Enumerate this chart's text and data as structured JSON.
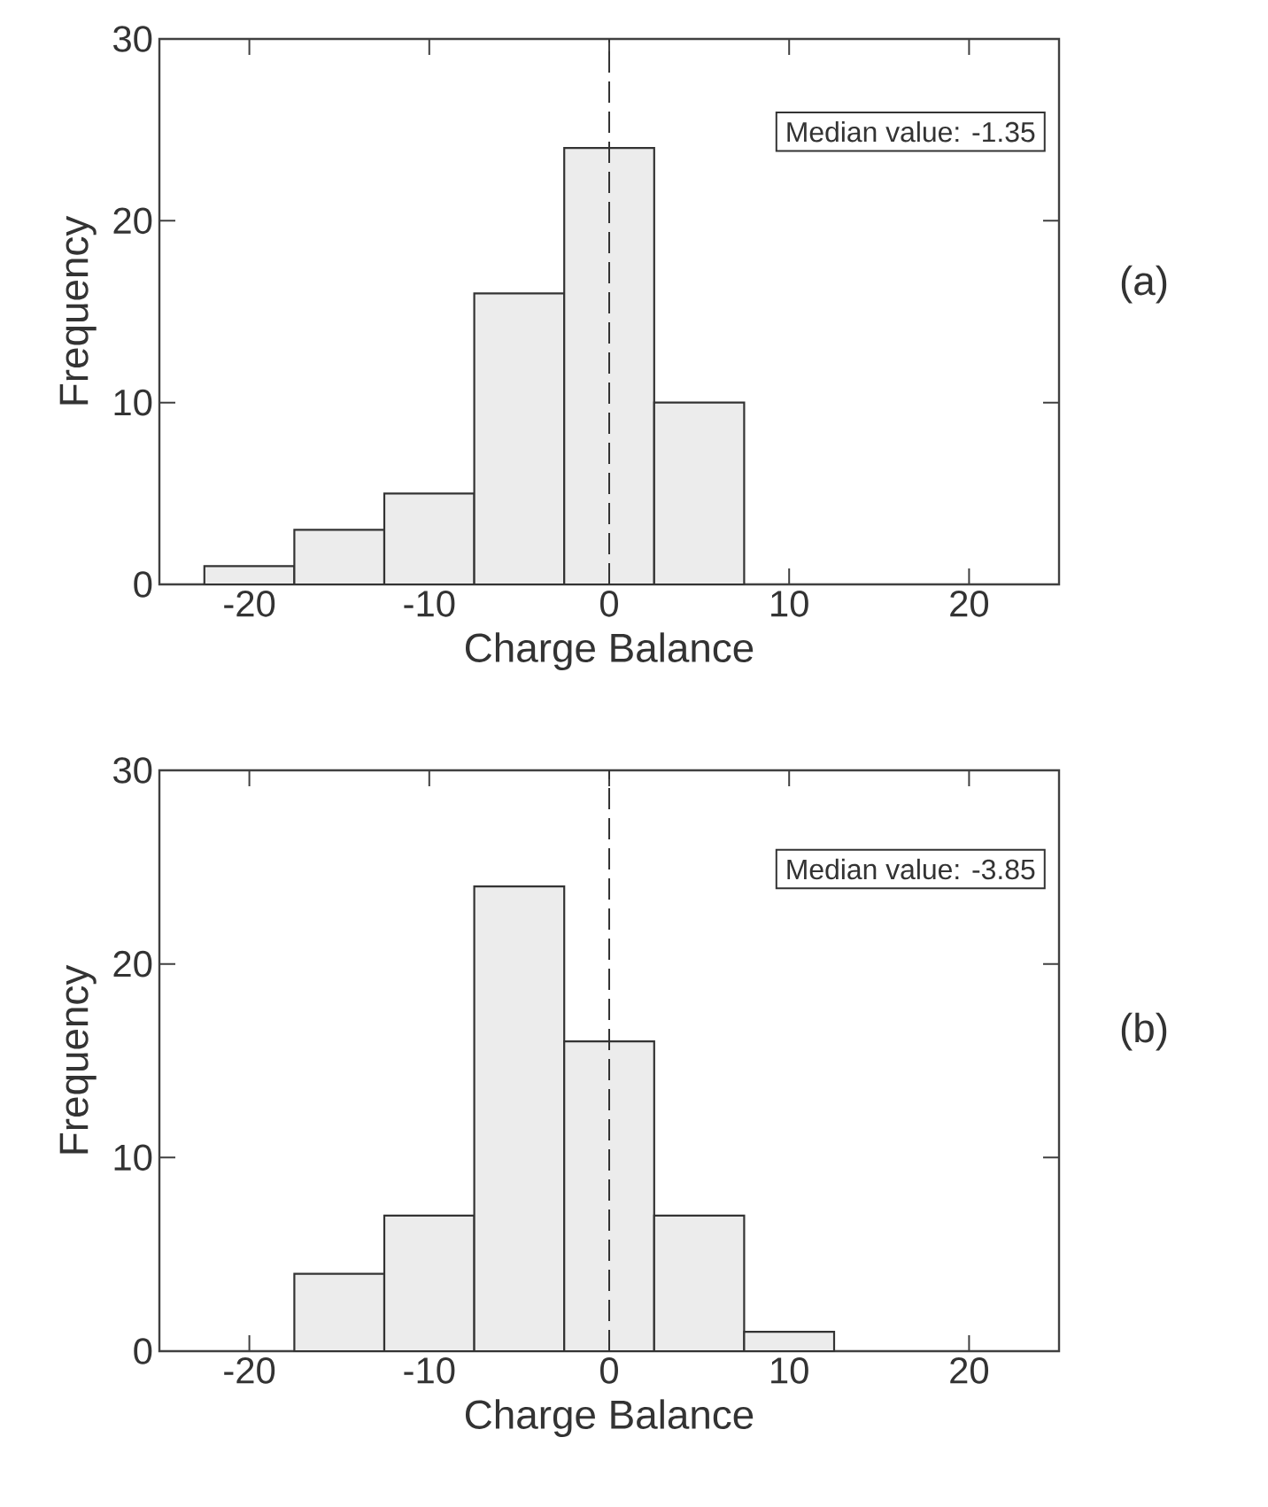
{
  "chart_data": [
    {
      "type": "histogram",
      "bins": [
        -22.5,
        -17.5,
        -12.5,
        -7.5,
        -2.5,
        2.5,
        7.5
      ],
      "values": [
        1,
        3,
        5,
        16,
        24,
        10
      ],
      "color": "#ececec",
      "xlabel": "Charge Balance",
      "ylabel": "Frequency",
      "xlim": [
        -25,
        25
      ],
      "xticks": [
        -20,
        -10,
        0,
        10,
        20
      ],
      "ylim": [
        0,
        30
      ],
      "yticks": [
        0,
        10,
        20,
        30
      ],
      "ref_lines": [
        {
          "axis": "x",
          "value": 0,
          "line_style": "dashed"
        }
      ],
      "annotations": [
        "Median value: -1.35",
        "(a)"
      ]
    },
    {
      "type": "histogram",
      "bins": [
        -17.5,
        -12.5,
        -7.5,
        -2.5,
        2.5,
        7.5,
        12.5
      ],
      "values": [
        4,
        7,
        24,
        16,
        7,
        1
      ],
      "color": "#ececec",
      "xlabel": "Charge Balance",
      "ylabel": "Frequency",
      "xlim": [
        -25,
        25
      ],
      "xticks": [
        -20,
        -10,
        0,
        10,
        20
      ],
      "ylim": [
        0,
        30
      ],
      "yticks": [
        0,
        10,
        20,
        30
      ],
      "ref_lines": [
        {
          "axis": "x",
          "value": 0,
          "line_style": "dashed"
        }
      ],
      "annotations": [
        "Median value: -3.85",
        "(b)"
      ]
    }
  ]
}
